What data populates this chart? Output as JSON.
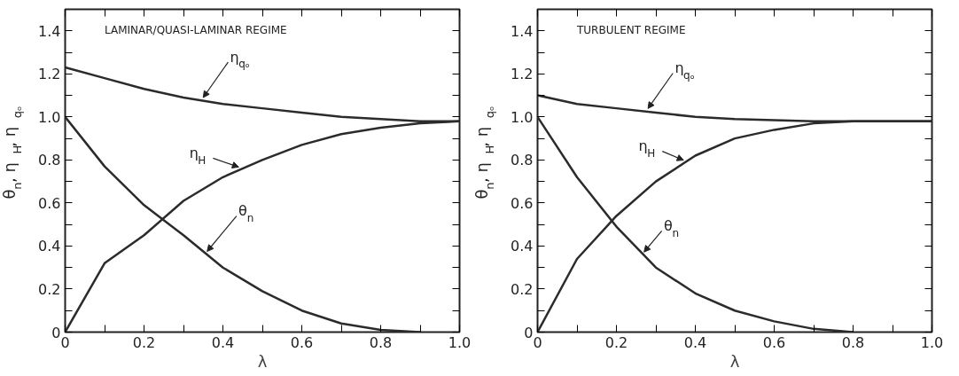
{
  "chart_data": [
    {
      "type": "line",
      "title": "LAMINAR/QUASI-LAMINAR REGIME",
      "xlabel": "λ",
      "ylabel": "θ$_{n}$, η$_{H}$, η$_{qₒ}$",
      "xlim": [
        0,
        1
      ],
      "ylim": [
        0,
        1.5
      ],
      "xticks": [
        0,
        {
          "value": 0.1,
          "label": null
        },
        0.2,
        {
          "value": 0.3,
          "label": null
        },
        0.4,
        {
          "value": 0.5,
          "label": null
        },
        0.6,
        {
          "value": 0.7,
          "label": null
        },
        0.8,
        {
          "value": 0.9,
          "label": null
        },
        {
          "value": 1,
          "label": "1.0"
        }
      ],
      "yticks": [
        0,
        {
          "value": 0.1,
          "label": null
        },
        0.2,
        {
          "value": 0.3,
          "label": null
        },
        0.4,
        {
          "value": 0.5,
          "label": null
        },
        0.6,
        {
          "value": 0.7,
          "label": null
        },
        0.8,
        {
          "value": 0.9,
          "label": null
        },
        {
          "value": 1,
          "label": "1.0"
        },
        {
          "value": 1.1,
          "label": null
        },
        1.2,
        {
          "value": 1.3,
          "label": null
        },
        1.4
      ],
      "grid": false,
      "line_style": "solid",
      "marker": "none",
      "series": [
        {
          "name": "η$_{qₒ}$",
          "color": "#2b2b2b",
          "x": [
            0,
            0.1,
            0.2,
            0.3,
            0.4,
            0.5,
            0.6,
            0.7,
            0.8,
            0.9,
            1.0
          ],
          "values": [
            1.23,
            1.18,
            1.13,
            1.09,
            1.06,
            1.04,
            1.02,
            1.0,
            0.99,
            0.98,
            0.98
          ]
        },
        {
          "name": "η$_{H}$",
          "color": "#2b2b2b",
          "x": [
            0,
            0.1,
            0.2,
            0.3,
            0.4,
            0.5,
            0.6,
            0.7,
            0.8,
            0.9,
            1.0
          ],
          "values": [
            0,
            0.32,
            0.45,
            0.61,
            0.72,
            0.8,
            0.87,
            0.92,
            0.95,
            0.97,
            0.98
          ]
        },
        {
          "name": "θ$_{n}$",
          "color": "#2b2b2b",
          "x": [
            0,
            0.1,
            0.2,
            0.3,
            0.4,
            0.5,
            0.6,
            0.7,
            0.8,
            0.9
          ],
          "values": [
            1.0,
            0.77,
            0.59,
            0.45,
            0.3,
            0.19,
            0.1,
            0.04,
            0.01,
            0
          ]
        }
      ]
    },
    {
      "type": "line",
      "title": "TURBULENT REGIME",
      "xlabel": "λ",
      "ylabel": "θ$_{n}$, η$_{H}$, η$_{qₒ}$",
      "xlim": [
        0,
        1
      ],
      "ylim": [
        0,
        1.5
      ],
      "xticks": [
        0,
        {
          "value": 0.1,
          "label": null
        },
        0.2,
        {
          "value": 0.3,
          "label": null
        },
        0.4,
        {
          "value": 0.5,
          "label": null
        },
        0.6,
        {
          "value": 0.7,
          "label": null
        },
        0.8,
        {
          "value": 0.9,
          "label": null
        },
        {
          "value": 1,
          "label": "1.0"
        }
      ],
      "yticks": [
        0,
        {
          "value": 0.1,
          "label": null
        },
        0.2,
        {
          "value": 0.3,
          "label": null
        },
        0.4,
        {
          "value": 0.5,
          "label": null
        },
        0.6,
        {
          "value": 0.7,
          "label": null
        },
        0.8,
        {
          "value": 0.9,
          "label": null
        },
        {
          "value": 1,
          "label": "1.0"
        },
        {
          "value": 1.1,
          "label": null
        },
        1.2,
        {
          "value": 1.3,
          "label": null
        },
        1.4
      ],
      "grid": false,
      "line_style": "solid",
      "marker": "none",
      "series": [
        {
          "name": "η$_{qₒ}$",
          "color": "#2b2b2b",
          "x": [
            0,
            0.1,
            0.2,
            0.3,
            0.4,
            0.5,
            0.6,
            0.7,
            0.8,
            0.9,
            1.0
          ],
          "values": [
            1.1,
            1.06,
            1.04,
            1.02,
            1.0,
            0.99,
            0.985,
            0.98,
            0.98,
            0.98,
            0.98
          ]
        },
        {
          "name": "η$_{H}$",
          "color": "#2b2b2b",
          "x": [
            0,
            0.1,
            0.2,
            0.3,
            0.4,
            0.5,
            0.6,
            0.7,
            0.8,
            0.9,
            1.0
          ],
          "values": [
            0,
            0.34,
            0.54,
            0.7,
            0.82,
            0.9,
            0.94,
            0.97,
            0.98,
            0.98,
            0.98
          ]
        },
        {
          "name": "θ$_{n}$",
          "color": "#2b2b2b",
          "x": [
            0,
            0.1,
            0.2,
            0.3,
            0.4,
            0.5,
            0.6,
            0.7,
            0.8
          ],
          "values": [
            1.0,
            0.72,
            0.49,
            0.3,
            0.18,
            0.1,
            0.05,
            0.015,
            0
          ]
        }
      ]
    }
  ]
}
